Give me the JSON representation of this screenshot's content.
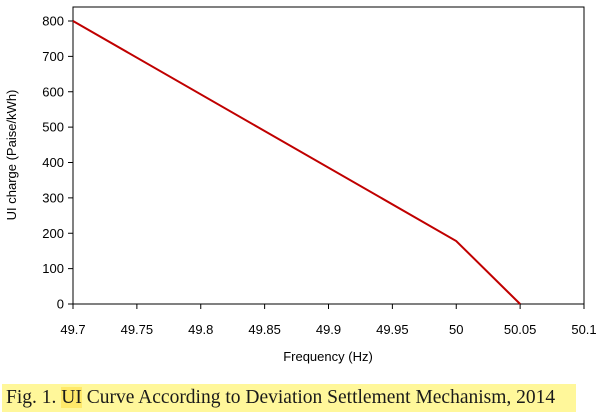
{
  "chart_data": {
    "type": "line",
    "title": "",
    "xlabel": "Frequency (Hz)",
    "ylabel": "UI charge (Paise/kWh)",
    "xlim": [
      49.7,
      50.1
    ],
    "ylim": [
      0,
      800
    ],
    "x_ticks": [
      "49.7",
      "49.75",
      "49.8",
      "49.85",
      "49.9",
      "49.95",
      "50",
      "50.05",
      "50.1"
    ],
    "y_ticks": [
      "0",
      "100",
      "200",
      "300",
      "400",
      "500",
      "600",
      "700",
      "800"
    ],
    "series": [
      {
        "x": [
          49.7,
          50.0,
          50.05
        ],
        "y": [
          800,
          178,
          0
        ]
      }
    ],
    "line_color": "#c00000",
    "grid": false
  },
  "caption": {
    "prefix": "Fig. 1. ",
    "highlight": "UI",
    "rest": " Curve According to Deviation Settlement Mechanism, 2014"
  }
}
